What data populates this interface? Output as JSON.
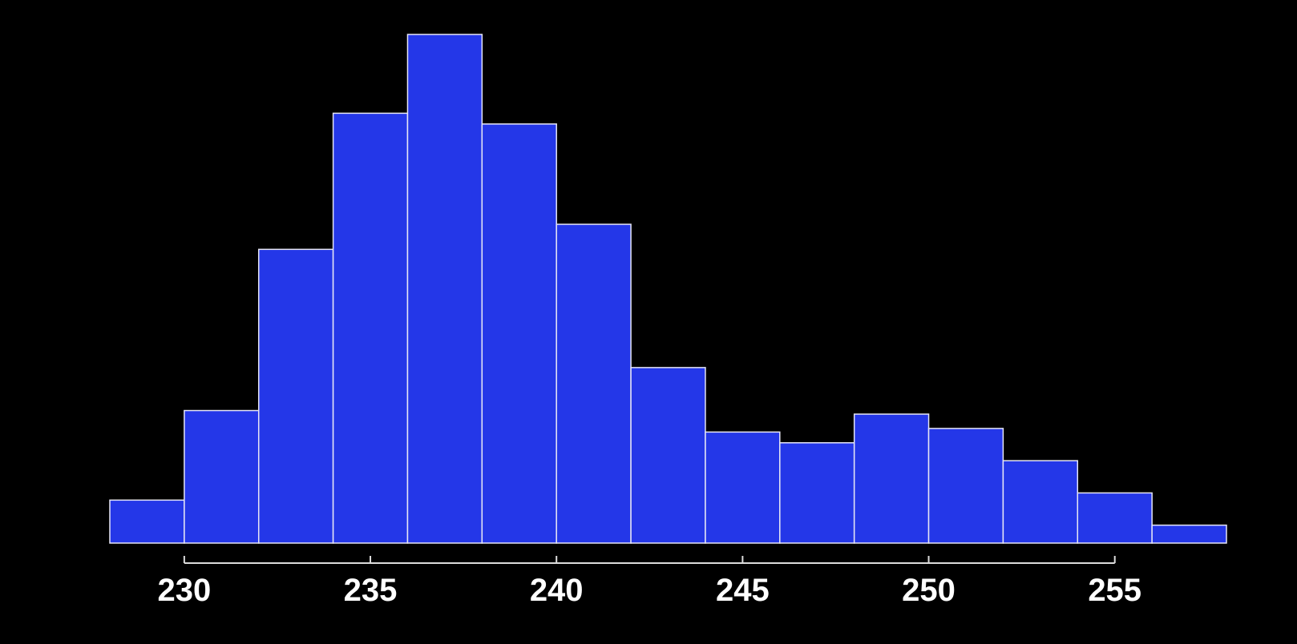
{
  "chart_data": {
    "type": "bar",
    "title": "",
    "xlabel": "",
    "ylabel": "",
    "bin_edges": [
      228,
      230,
      232,
      234,
      236,
      238,
      240,
      242,
      244,
      246,
      248,
      250,
      252,
      254,
      256,
      258
    ],
    "values": [
      1.2,
      3.7,
      8.2,
      12.0,
      14.2,
      11.7,
      8.9,
      4.9,
      3.1,
      2.8,
      3.6,
      3.2,
      2.3,
      1.4,
      0.5
    ],
    "xlim": [
      228,
      258
    ],
    "ylim": [
      0,
      14.2
    ],
    "x_ticks": [
      230,
      235,
      240,
      245,
      250,
      255
    ],
    "x_tick_labels": [
      "230",
      "235",
      "240",
      "245",
      "250",
      "255"
    ],
    "grid": false,
    "legend": "none",
    "y_axis_visible": false,
    "colors": {
      "background": "#000000",
      "bar_fill": "#2437e8",
      "bar_edge": "#e6e6f5",
      "axis": "#dcdcdc",
      "tick_text": "#ffffff"
    }
  }
}
